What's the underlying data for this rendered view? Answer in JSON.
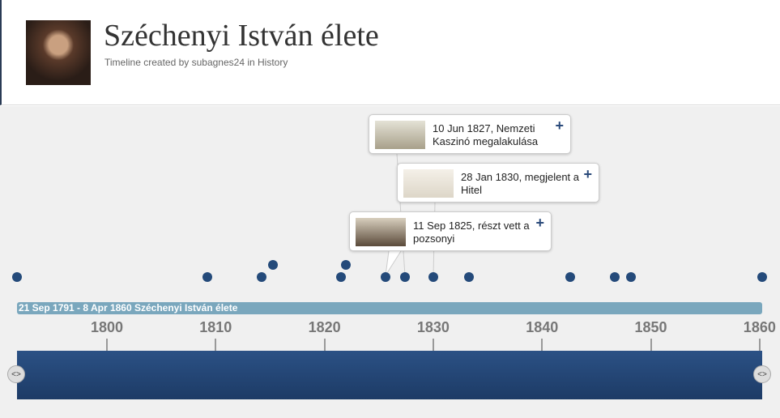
{
  "header": {
    "title": "Széchenyi István élete",
    "subtitle": "Timeline created by subagnes24 in History"
  },
  "range_label": "21 Sep 1791 - 8 Apr 1860  Széchenyi István élete",
  "events": [
    1791.7,
    1809.2,
    1814.2,
    1815.3,
    1821.5,
    1822.0,
    1825.6,
    1827.4,
    1830.0,
    1833.3,
    1842.6,
    1846.7,
    1848.2,
    1860.2
  ],
  "cards": [
    {
      "text": "10 Jun 1827, Nemzeti Kaszinó megalakulása"
    },
    {
      "text": "28 Jan 1830, megjelent a Hitel"
    },
    {
      "text": "11 Sep 1825, részt vett a pozsonyi"
    }
  ],
  "xlim": [
    1790,
    1862
  ],
  "xticks": [
    1800,
    1810,
    1820,
    1830,
    1840,
    1850,
    1860
  ]
}
